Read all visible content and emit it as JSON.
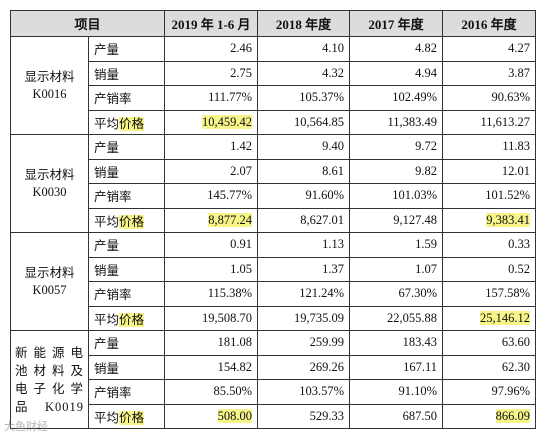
{
  "table": {
    "headers": [
      "项目",
      "2019 年 1-6 月",
      "2018 年度",
      "2017 年度",
      "2016 年度"
    ],
    "groups": [
      {
        "name_lines": [
          "显示材料",
          "K0016"
        ],
        "spread": false,
        "rows": [
          {
            "metric": "产量",
            "values": [
              "2.46",
              "4.10",
              "4.82",
              "4.27"
            ],
            "highlights": []
          },
          {
            "metric": "销量",
            "values": [
              "2.75",
              "4.32",
              "4.94",
              "3.87"
            ],
            "highlights": []
          },
          {
            "metric": "产销率",
            "values": [
              "111.77%",
              "105.37%",
              "102.49%",
              "90.63%"
            ],
            "highlights": []
          },
          {
            "metric_prefix": "平均",
            "metric_hl": "价格",
            "values": [
              "10,459.42",
              "10,564.85",
              "11,383.49",
              "11,613.27"
            ],
            "highlights": [
              0
            ]
          }
        ]
      },
      {
        "name_lines": [
          "显示材料",
          "K0030"
        ],
        "spread": false,
        "rows": [
          {
            "metric": "产量",
            "values": [
              "1.42",
              "9.40",
              "9.72",
              "11.83"
            ],
            "highlights": []
          },
          {
            "metric": "销量",
            "values": [
              "2.07",
              "8.61",
              "9.82",
              "12.01"
            ],
            "highlights": []
          },
          {
            "metric": "产销率",
            "values": [
              "145.77%",
              "91.60%",
              "101.03%",
              "101.52%"
            ],
            "highlights": []
          },
          {
            "metric_prefix": "平均",
            "metric_hl": "价格",
            "values": [
              "8,877.24",
              "8,627.01",
              "9,127.48",
              "9,383.41"
            ],
            "highlights": [
              0,
              3
            ]
          }
        ]
      },
      {
        "name_lines": [
          "显示材料",
          "K0057"
        ],
        "spread": false,
        "rows": [
          {
            "metric": "产量",
            "values": [
              "0.91",
              "1.13",
              "1.59",
              "0.33"
            ],
            "highlights": []
          },
          {
            "metric": "销量",
            "values": [
              "1.05",
              "1.37",
              "1.07",
              "0.52"
            ],
            "highlights": []
          },
          {
            "metric": "产销率",
            "values": [
              "115.38%",
              "121.24%",
              "67.30%",
              "157.58%"
            ],
            "highlights": []
          },
          {
            "metric_prefix": "平均",
            "metric_hl": "价格",
            "values": [
              "19,508.70",
              "19,735.09",
              "22,055.88",
              "25,146.12"
            ],
            "highlights": [
              3
            ]
          }
        ]
      },
      {
        "name_lines": [
          "新能源电",
          "池材料及",
          "电子化学",
          "品 K0019"
        ],
        "spread": true,
        "rows": [
          {
            "metric": "产量",
            "values": [
              "181.08",
              "259.99",
              "183.43",
              "63.60"
            ],
            "highlights": []
          },
          {
            "metric": "销量",
            "values": [
              "154.82",
              "269.26",
              "167.11",
              "62.30"
            ],
            "highlights": []
          },
          {
            "metric": "产销率",
            "values": [
              "85.50%",
              "103.57%",
              "91.10%",
              "97.96%"
            ],
            "highlights": []
          },
          {
            "metric_prefix": "平均",
            "metric_hl": "价格",
            "values": [
              "508.00",
              "529.33",
              "687.50",
              "866.09"
            ],
            "highlights": [
              0,
              3
            ]
          }
        ]
      }
    ]
  },
  "watermark": "大鱼财经"
}
